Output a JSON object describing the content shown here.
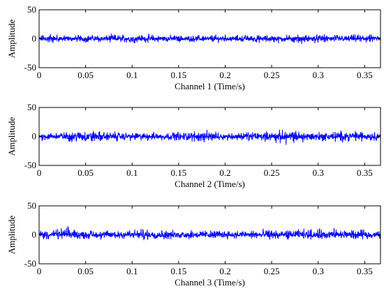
{
  "chart_data": [
    {
      "type": "line",
      "xlabel": "Channel 1 (Time/s)",
      "ylabel": "Amplitude",
      "xlim": [
        0,
        0.367
      ],
      "ylim": [
        -50,
        50
      ],
      "xticks": [
        "0",
        "0.05",
        "0.1",
        "0.15",
        "0.2",
        "0.25",
        "0.3",
        "0.35"
      ],
      "yticks": [
        "50",
        "0",
        "-50"
      ],
      "grid": false,
      "series": [
        {
          "color": "#0000ff",
          "noise_envelope": {
            "x": [
              0,
              0.01,
              0.03,
              0.05,
              0.1,
              0.15,
              0.2,
              0.25,
              0.3,
              0.33,
              0.35,
              0.367
            ],
            "ymin": [
              -10,
              -12,
              -8,
              -9,
              -10,
              -8,
              -9,
              -10,
              -12,
              -9,
              -10,
              -8
            ],
            "ymax": [
              10,
              14,
              9,
              10,
              12,
              9,
              10,
              9,
              11,
              10,
              12,
              9
            ]
          }
        }
      ]
    },
    {
      "type": "line",
      "xlabel": "Channel 2 (Time/s)",
      "ylabel": "Amplitude",
      "xlim": [
        0,
        0.367
      ],
      "ylim": [
        -50,
        50
      ],
      "xticks": [
        "0",
        "0.05",
        "0.1",
        "0.15",
        "0.2",
        "0.25",
        "0.3",
        "0.35"
      ],
      "yticks": [
        "50",
        "0",
        "-50"
      ],
      "grid": false,
      "series": [
        {
          "color": "#0000ff",
          "noise_envelope": {
            "x": [
              0,
              0.025,
              0.05,
              0.075,
              0.1,
              0.15,
              0.175,
              0.2,
              0.25,
              0.26,
              0.3,
              0.315,
              0.35,
              0.367
            ],
            "ymin": [
              -10,
              -12,
              -20,
              -12,
              -12,
              -10,
              -15,
              -10,
              -12,
              -20,
              -12,
              -14,
              -12,
              -10
            ],
            "ymax": [
              9,
              12,
              17,
              12,
              10,
              12,
              15,
              10,
              14,
              16,
              12,
              15,
              14,
              10
            ]
          }
        }
      ]
    },
    {
      "type": "line",
      "xlabel": "Channel 3 (Time/s)",
      "ylabel": "Amplitude",
      "xlim": [
        0,
        0.367
      ],
      "ylim": [
        -50,
        50
      ],
      "xticks": [
        "0",
        "0.05",
        "0.1",
        "0.15",
        "0.2",
        "0.25",
        "0.3",
        "0.35"
      ],
      "yticks": [
        "50",
        "0",
        "-50"
      ],
      "grid": false,
      "series": [
        {
          "color": "#0000ff",
          "noise_envelope": {
            "x": [
              0,
              0.02,
              0.03,
              0.05,
              0.08,
              0.1,
              0.15,
              0.17,
              0.2,
              0.25,
              0.3,
              0.32,
              0.35,
              0.367
            ],
            "ymin": [
              -10,
              -14,
              -12,
              -10,
              -12,
              -14,
              -10,
              -12,
              -10,
              -12,
              -11,
              -12,
              -11,
              -10
            ],
            "ymax": [
              12,
              16,
              20,
              12,
              14,
              16,
              12,
              15,
              12,
              13,
              15,
              16,
              12,
              10
            ]
          }
        }
      ]
    }
  ]
}
